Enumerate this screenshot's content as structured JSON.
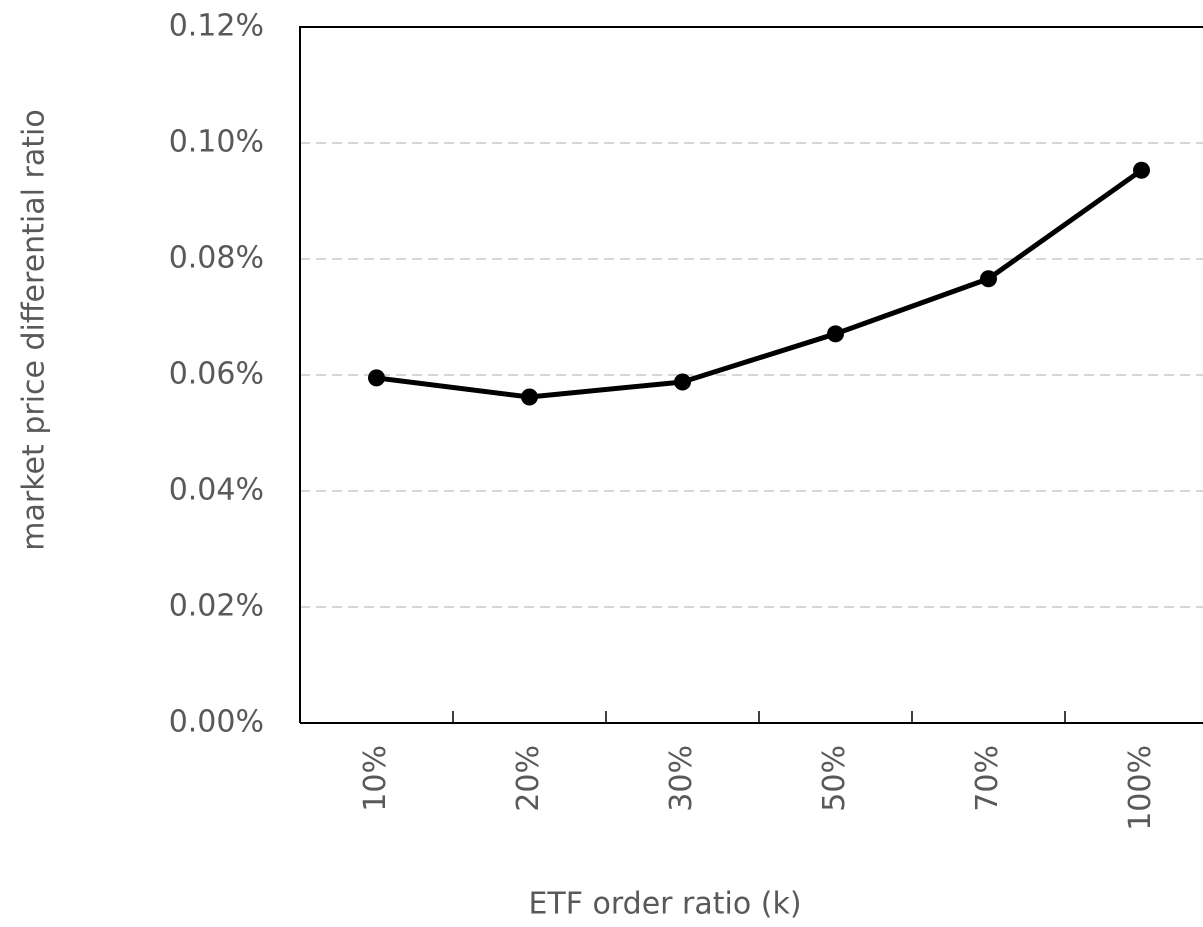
{
  "chart_data": {
    "type": "line",
    "x_label": "ETF order ratio (k)",
    "y_label": "market price differential ratio",
    "categories": [
      "10%",
      "20%",
      "30%",
      "50%",
      "70%",
      "100%"
    ],
    "values": [
      0.0595,
      0.0562,
      0.0588,
      0.0671,
      0.0766,
      0.0953
    ],
    "color": "#000000",
    "ylim": [
      0,
      0.12
    ],
    "yticks": [
      {
        "value": 0,
        "label": "0.00%"
      },
      {
        "value": 0.02,
        "label": "0.02%"
      },
      {
        "value": 0.04,
        "label": "0.04%"
      },
      {
        "value": 0.06,
        "label": "0.06%"
      },
      {
        "value": 0.08,
        "label": "0.08%"
      },
      {
        "value": 0.1,
        "label": "0.10%"
      },
      {
        "value": 0.12,
        "label": "0.12%"
      }
    ],
    "grid": true
  }
}
